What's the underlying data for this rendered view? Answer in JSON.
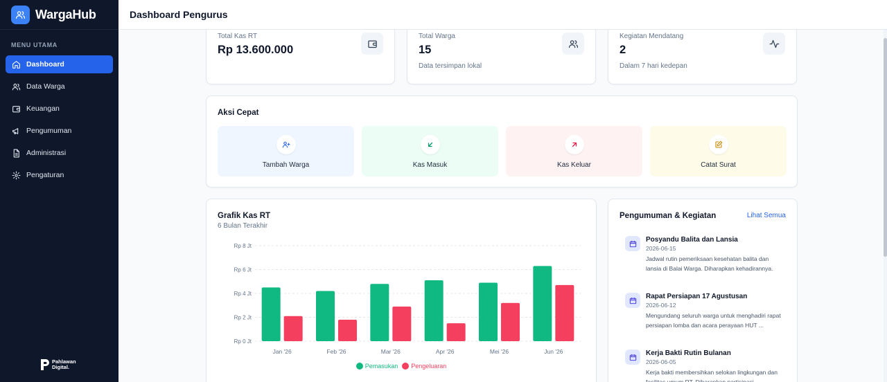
{
  "brand": {
    "name": "WargaHub"
  },
  "sidebar": {
    "menu_heading": "MENU UTAMA",
    "items": [
      {
        "label": "Dashboard",
        "icon": "home-icon",
        "active": true
      },
      {
        "label": "Data Warga",
        "icon": "users-icon"
      },
      {
        "label": "Keuangan",
        "icon": "wallet-icon"
      },
      {
        "label": "Pengumuman",
        "icon": "megaphone-icon"
      },
      {
        "label": "Administrasi",
        "icon": "document-icon"
      },
      {
        "label": "Pengaturan",
        "icon": "gear-icon"
      }
    ],
    "footer_brand": [
      "Pahlawan",
      "Digital."
    ]
  },
  "header": {
    "title": "Dashboard Pengurus"
  },
  "stats": [
    {
      "label": "Total Kas RT",
      "value": "Rp 13.600.000",
      "sub": "",
      "icon": "wallet-icon"
    },
    {
      "label": "Total Warga",
      "value": "15",
      "sub": "Data tersimpan lokal",
      "icon": "users-icon"
    },
    {
      "label": "Kegiatan Mendatang",
      "value": "2",
      "sub": "Dalam 7 hari kedepan",
      "icon": "activity-icon"
    }
  ],
  "quick_actions": {
    "title": "Aksi Cepat",
    "items": [
      {
        "label": "Tambah Warga",
        "icon": "user-plus-icon",
        "bg": "#eff6ff",
        "color": "#2563eb"
      },
      {
        "label": "Kas Masuk",
        "icon": "arrow-down-left-icon",
        "bg": "#ecfdf5",
        "color": "#059669"
      },
      {
        "label": "Kas Keluar",
        "icon": "arrow-up-right-icon",
        "bg": "#fef2f2",
        "color": "#e11d48"
      },
      {
        "label": "Catat Surat",
        "icon": "edit-icon",
        "bg": "#fefce8",
        "color": "#ca8a04"
      }
    ]
  },
  "chart_card": {
    "title": "Grafik Kas RT",
    "subtitle": "6 Bulan Terakhir"
  },
  "chart_data": {
    "type": "bar",
    "categories": [
      "Jan '26",
      "Feb '26",
      "Mar '26",
      "Apr '26",
      "Mei '26",
      "Jun '26"
    ],
    "series": [
      {
        "name": "Pemasukan",
        "color": "#10b981",
        "values": [
          4.5,
          4.2,
          4.8,
          5.1,
          4.9,
          6.3
        ]
      },
      {
        "name": "Pengeluaran",
        "color": "#f43f5e",
        "values": [
          2.1,
          1.8,
          2.9,
          1.5,
          3.2,
          4.7
        ]
      }
    ],
    "yticks": [
      "Rp 0 Jt",
      "Rp 2 Jt",
      "Rp 4 Jt",
      "Rp 6 Jt",
      "Rp 8 Jt"
    ],
    "ylim": [
      0,
      8
    ],
    "grid": true,
    "legend": "bottom-center"
  },
  "announcements": {
    "title": "Pengumuman & Kegiatan",
    "link": "Lihat Semua",
    "items": [
      {
        "title": "Posyandu Balita dan Lansia",
        "date": "2026-06-15",
        "desc": "Jadwal rutin pemeriksaan kesehatan balita dan lansia di Balai Warga. Diharapkan kehadirannya."
      },
      {
        "title": "Rapat Persiapan 17 Agustusan",
        "date": "2026-06-12",
        "desc": "Mengundang seluruh warga untuk menghadiri rapat persiapan lomba dan acara perayaan HUT ..."
      },
      {
        "title": "Kerja Bakti Rutin Bulanan",
        "date": "2026-06-05",
        "desc": "Kerja bakti membersihkan selokan lingkungan dan fasilitas umum RT. Diharapkan partisipasi"
      }
    ]
  }
}
